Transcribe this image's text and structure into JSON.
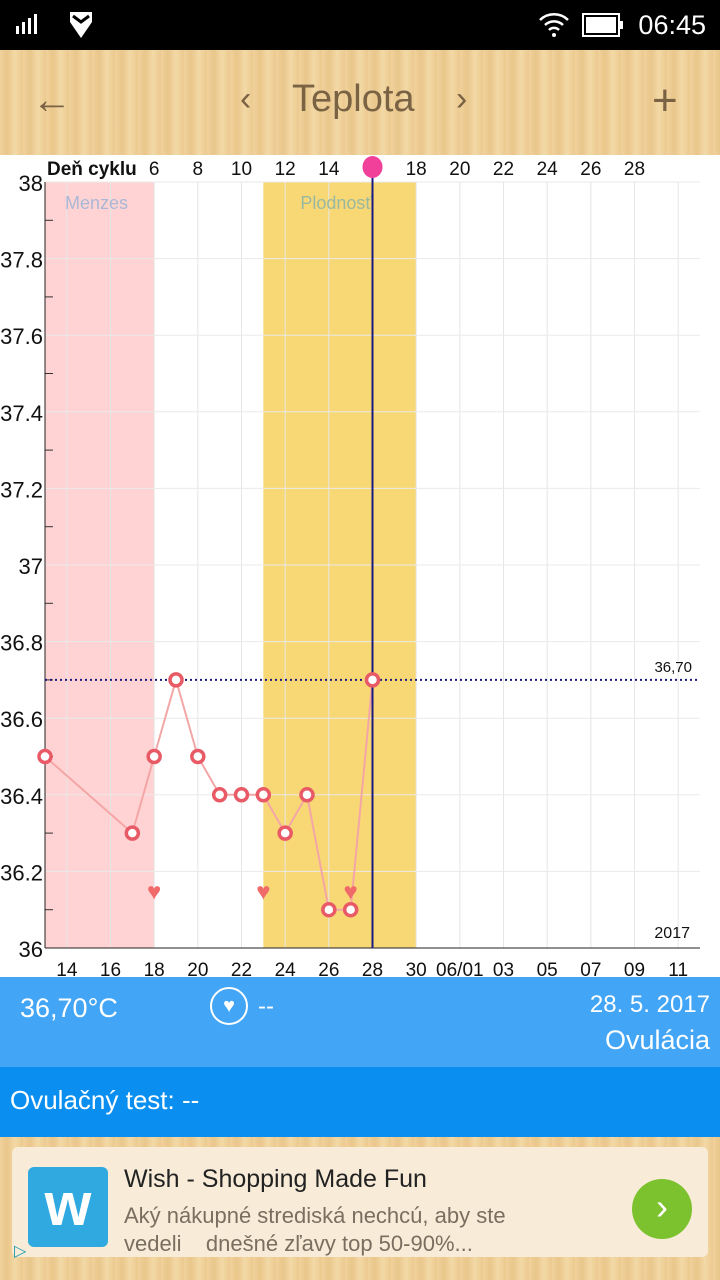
{
  "status": {
    "time": "06:45"
  },
  "header": {
    "title": "Teplota",
    "back_icon": "arrow-left-icon",
    "prev_icon": "chevron-left-icon",
    "next_icon": "chevron-right-icon",
    "add_icon": "plus-icon"
  },
  "chart_data": {
    "type": "line",
    "top_axis_label": "Deň cyklu",
    "ylim": [
      36,
      38
    ],
    "y_ticks": [
      "36",
      "36.2",
      "36.4",
      "36.6",
      "36.8",
      "37",
      "37.2",
      "37.4",
      "37.6",
      "37.8",
      "38"
    ],
    "x_ticks": [
      {
        "day": 14,
        "label": "14"
      },
      {
        "day": 16,
        "label": "16"
      },
      {
        "day": 18,
        "label": "18"
      },
      {
        "day": 20,
        "label": "20"
      },
      {
        "day": 22,
        "label": "22"
      },
      {
        "day": 24,
        "label": "24"
      },
      {
        "day": 26,
        "label": "26"
      },
      {
        "day": 28,
        "label": "28"
      },
      {
        "day": 30,
        "label": "30"
      },
      {
        "day": 32,
        "label": "06/01"
      },
      {
        "day": 34,
        "label": "03"
      },
      {
        "day": 36,
        "label": "05"
      },
      {
        "day": 38,
        "label": "07"
      },
      {
        "day": 40,
        "label": "09"
      },
      {
        "day": 42,
        "label": "11"
      }
    ],
    "cycle_ticks": [
      {
        "day": 18,
        "label": "6"
      },
      {
        "day": 20,
        "label": "8"
      },
      {
        "day": 22,
        "label": "10"
      },
      {
        "day": 24,
        "label": "12"
      },
      {
        "day": 26,
        "label": "14"
      },
      {
        "day": 30,
        "label": "18"
      },
      {
        "day": 32,
        "label": "20"
      },
      {
        "day": 34,
        "label": "22"
      },
      {
        "day": 36,
        "label": "24"
      },
      {
        "day": 38,
        "label": "26"
      },
      {
        "day": 40,
        "label": "28"
      }
    ],
    "x_range": [
      13,
      43
    ],
    "series": [
      {
        "name": "Teplota",
        "x": [
          13,
          17,
          18,
          19,
          20,
          21,
          22,
          23,
          24,
          25,
          26,
          27,
          28
        ],
        "values": [
          36.5,
          36.3,
          36.5,
          36.7,
          36.5,
          36.4,
          36.4,
          36.4,
          36.3,
          36.4,
          36.1,
          36.1,
          36.7
        ]
      }
    ],
    "hearts": [
      18,
      23,
      27
    ],
    "menses": {
      "label": "Menzes",
      "from": 13,
      "to": 18
    },
    "fertile": {
      "label": "Plodnosť",
      "from": 23,
      "to": 30
    },
    "selected_day": 28,
    "reference_line": {
      "value": 36.7,
      "label": "36,70"
    },
    "year_label": "2017",
    "colors": {
      "menses": "#ffd3d3",
      "fertile": "#f8d875",
      "line": "#f4a6a6",
      "point": "#e85a66",
      "selected": "#1a1a80"
    }
  },
  "info": {
    "temperature": "36,70°C",
    "intercourse": "--",
    "date": "28. 5. 2017",
    "phase": "Ovulácia",
    "ovulation_test": "Ovulačný test: --"
  },
  "ad": {
    "title": "Wish - Shopping Made Fun",
    "text1": "Aký nákupné strediská nechcú, aby ste",
    "text2": "vedeli    dnešné zľavy top 50-90%..."
  }
}
